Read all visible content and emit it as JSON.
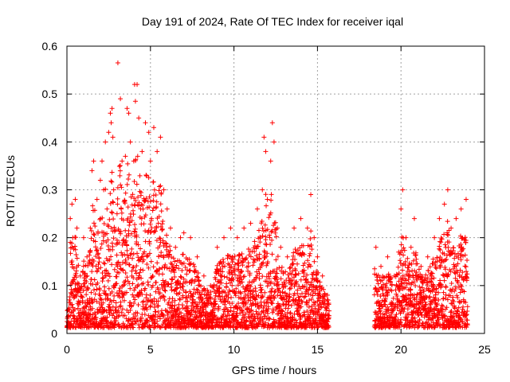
{
  "chart_data": {
    "type": "scatter",
    "title": "Day 191 of 2024, Rate Of TEC Index for receiver iqal",
    "xlabel": "GPS time / hours",
    "ylabel": "ROTI / TECUs",
    "xlim": [
      0,
      25
    ],
    "ylim": [
      0,
      0.6
    ],
    "xticks": [
      0,
      5,
      10,
      15,
      20,
      25
    ],
    "yticks": [
      0,
      0.1,
      0.2,
      0.3,
      0.4,
      0.5,
      0.6
    ],
    "xtick_labels": [
      "0",
      "5",
      "10",
      "15",
      "20",
      "25"
    ],
    "ytick_labels": [
      "0",
      "0.1",
      "0.2",
      "0.3",
      "0.4",
      "0.5",
      "0.6"
    ],
    "grid": true,
    "marker": "+",
    "color": "#ff0000",
    "data_gap_hours": [
      15.7,
      18.4
    ],
    "series": [
      {
        "name": "ROTI",
        "points": [
          [
            0.1,
            0.05
          ],
          [
            0.2,
            0.19
          ],
          [
            0.2,
            0.24
          ],
          [
            0.3,
            0.27
          ],
          [
            0.35,
            0.2
          ],
          [
            0.5,
            0.28
          ],
          [
            0.6,
            0.22
          ],
          [
            0.8,
            0.12
          ],
          [
            1.0,
            0.2
          ],
          [
            1.2,
            0.16
          ],
          [
            1.4,
            0.22
          ],
          [
            1.5,
            0.34
          ],
          [
            1.6,
            0.36
          ],
          [
            1.8,
            0.28
          ],
          [
            2.0,
            0.32
          ],
          [
            2.1,
            0.36
          ],
          [
            2.2,
            0.3
          ],
          [
            2.3,
            0.4
          ],
          [
            2.4,
            0.26
          ],
          [
            2.5,
            0.42
          ],
          [
            2.6,
            0.46
          ],
          [
            2.65,
            0.44
          ],
          [
            2.7,
            0.47
          ],
          [
            2.75,
            0.41
          ],
          [
            2.8,
            0.3
          ],
          [
            3.0,
            0.25
          ],
          [
            3.05,
            0.565
          ],
          [
            3.2,
            0.49
          ],
          [
            3.3,
            0.36
          ],
          [
            3.5,
            0.37
          ],
          [
            3.6,
            0.47
          ],
          [
            3.7,
            0.46
          ],
          [
            3.8,
            0.4
          ],
          [
            4.0,
            0.36
          ],
          [
            4.05,
            0.52
          ],
          [
            4.1,
            0.485
          ],
          [
            4.2,
            0.52
          ],
          [
            4.3,
            0.45
          ],
          [
            4.5,
            0.38
          ],
          [
            4.7,
            0.44
          ],
          [
            4.9,
            0.42
          ],
          [
            5.0,
            0.36
          ],
          [
            5.2,
            0.43
          ],
          [
            5.4,
            0.38
          ],
          [
            5.6,
            0.41
          ],
          [
            5.8,
            0.3
          ],
          [
            6.0,
            0.26
          ],
          [
            6.2,
            0.22
          ],
          [
            6.5,
            0.18
          ],
          [
            6.8,
            0.2
          ],
          [
            7.0,
            0.21
          ],
          [
            7.4,
            0.2
          ],
          [
            7.8,
            0.16
          ],
          [
            8.2,
            0.12
          ],
          [
            8.6,
            0.1
          ],
          [
            9.0,
            0.18
          ],
          [
            9.4,
            0.2
          ],
          [
            9.8,
            0.22
          ],
          [
            10.2,
            0.2
          ],
          [
            10.6,
            0.22
          ],
          [
            11.0,
            0.23
          ],
          [
            11.4,
            0.26
          ],
          [
            11.7,
            0.3
          ],
          [
            11.8,
            0.41
          ],
          [
            11.9,
            0.38
          ],
          [
            12.0,
            0.28
          ],
          [
            12.2,
            0.36
          ],
          [
            12.3,
            0.44
          ],
          [
            12.4,
            0.4
          ],
          [
            12.6,
            0.22
          ],
          [
            12.8,
            0.18
          ],
          [
            13.2,
            0.16
          ],
          [
            13.6,
            0.22
          ],
          [
            14.0,
            0.24
          ],
          [
            14.4,
            0.22
          ],
          [
            14.6,
            0.29
          ],
          [
            14.8,
            0.2
          ],
          [
            15.0,
            0.16
          ],
          [
            15.3,
            0.12
          ],
          [
            15.6,
            0.08
          ],
          [
            18.5,
            0.18
          ],
          [
            18.8,
            0.14
          ],
          [
            19.2,
            0.16
          ],
          [
            19.6,
            0.12
          ],
          [
            20.0,
            0.26
          ],
          [
            20.1,
            0.3
          ],
          [
            20.3,
            0.2
          ],
          [
            20.6,
            0.18
          ],
          [
            20.8,
            0.24
          ],
          [
            21.2,
            0.14
          ],
          [
            21.6,
            0.16
          ],
          [
            22.0,
            0.2
          ],
          [
            22.3,
            0.24
          ],
          [
            22.6,
            0.27
          ],
          [
            22.8,
            0.3
          ],
          [
            23.0,
            0.22
          ],
          [
            23.3,
            0.24
          ],
          [
            23.6,
            0.26
          ],
          [
            23.9,
            0.28
          ]
        ]
      }
    ]
  }
}
